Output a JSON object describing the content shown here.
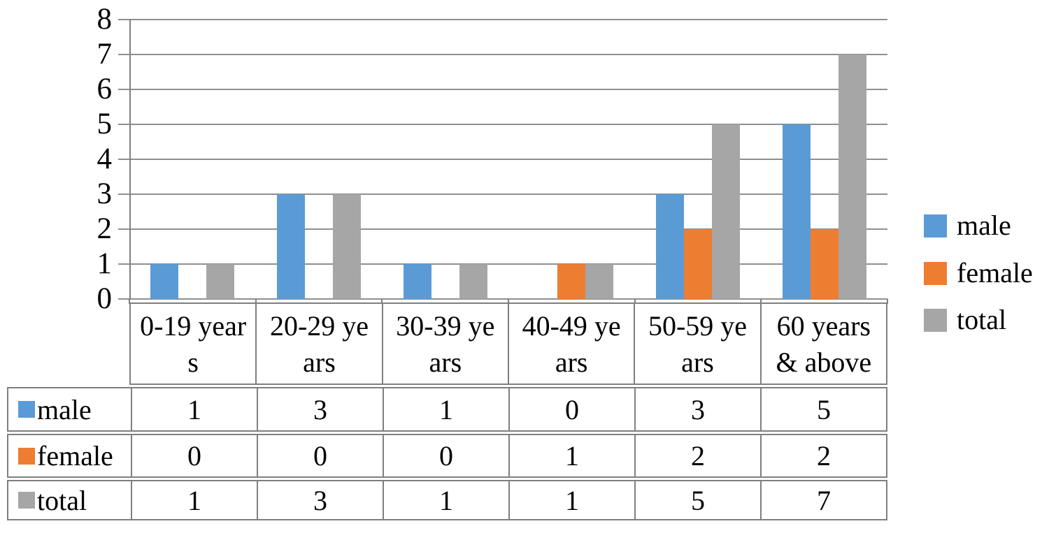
{
  "chart_data": {
    "type": "bar",
    "title": "",
    "xlabel": "",
    "ylabel": "",
    "categories": [
      "0-19 years",
      "20-29 years",
      "30-39 years",
      "40-49 years",
      "50-59 years",
      "60 years & above"
    ],
    "series": [
      {
        "name": "male",
        "color": "#5B9BD5",
        "values": [
          1,
          3,
          1,
          0,
          3,
          5
        ]
      },
      {
        "name": "female",
        "color": "#ED7D31",
        "values": [
          0,
          0,
          0,
          1,
          2,
          2
        ]
      },
      {
        "name": "total",
        "color": "#A6A6A6",
        "values": [
          1,
          3,
          1,
          1,
          5,
          7
        ]
      }
    ],
    "ylim": [
      0,
      8
    ],
    "yticks": [
      "8",
      "7",
      "6",
      "5",
      "4",
      "3",
      "2",
      "1",
      "0"
    ],
    "grid": true,
    "legend_position": "right"
  },
  "legend": {
    "items": [
      {
        "label": "male",
        "color": "#5B9BD5"
      },
      {
        "label": "female",
        "color": "#ED7D31"
      },
      {
        "label": "total",
        "color": "#A6A6A6"
      }
    ]
  },
  "data_table": {
    "header_lines": [
      "0-19 year\ns",
      "20-29 ye\nars",
      "30-39 ye\nars",
      "40-49 ye\nars",
      "50-59 ye\nars",
      "60 years\n& above"
    ],
    "rows": [
      {
        "label": "male",
        "swatch": "#5B9BD5",
        "values": [
          "1",
          "3",
          "1",
          "0",
          "3",
          "5"
        ]
      },
      {
        "label": "female",
        "swatch": "#ED7D31",
        "values": [
          "0",
          "0",
          "0",
          "1",
          "2",
          "2"
        ]
      },
      {
        "label": "total",
        "swatch": "#A6A6A6",
        "values": [
          "1",
          "3",
          "1",
          "1",
          "5",
          "7"
        ]
      }
    ]
  },
  "colors": {
    "gridline": "#8f8f8f",
    "axis": "#7f7f7f",
    "table_border": "#7f7f7f",
    "background": "#ffffff",
    "text": "#000000"
  }
}
